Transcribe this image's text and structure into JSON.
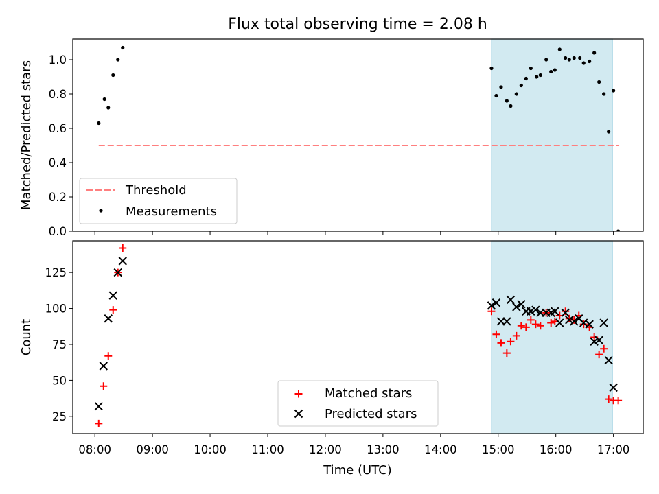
{
  "title": "Flux total observing time = 2.08 h",
  "xlabel": "Time (UTC)",
  "x_tick_labels": [
    "08:00",
    "09:00",
    "10:00",
    "11:00",
    "12:00",
    "13:00",
    "14:00",
    "15:00",
    "16:00",
    "17:00"
  ],
  "colors": {
    "threshold": "#ff7f7f",
    "measurements": "#000000",
    "matched": "#ff0000",
    "predicted": "#000000",
    "shade": "#add8e6"
  },
  "chart_data": [
    {
      "type": "scatter",
      "ylabel": "Matched/Predicted stars",
      "xlim": [
        "07:37",
        "17:31"
      ],
      "ylim": [
        0,
        1.12
      ],
      "y_ticks": [
        0.0,
        0.2,
        0.4,
        0.6,
        0.8,
        1.0
      ],
      "shaded_span": [
        "14:53",
        "16:59"
      ],
      "legend_loc": "lower left",
      "threshold": {
        "name": "Threshold",
        "y": 0.5,
        "x_range": [
          "08:04",
          "17:06"
        ]
      },
      "series": [
        {
          "name": "Measurements",
          "marker": "dot",
          "points": [
            [
              "08:04",
              0.63
            ],
            [
              "08:10",
              0.77
            ],
            [
              "08:14",
              0.72
            ],
            [
              "08:19",
              0.91
            ],
            [
              "08:24",
              1.0
            ],
            [
              "08:29",
              1.07
            ],
            [
              "14:53",
              0.95
            ],
            [
              "14:58",
              0.79
            ],
            [
              "15:03",
              0.84
            ],
            [
              "15:09",
              0.76
            ],
            [
              "15:13",
              0.73
            ],
            [
              "15:19",
              0.8
            ],
            [
              "15:24",
              0.85
            ],
            [
              "15:29",
              0.89
            ],
            [
              "15:34",
              0.95
            ],
            [
              "15:40",
              0.9
            ],
            [
              "15:44",
              0.91
            ],
            [
              "15:50",
              1.0
            ],
            [
              "15:55",
              0.93
            ],
            [
              "15:59",
              0.94
            ],
            [
              "16:04",
              1.06
            ],
            [
              "16:10",
              1.01
            ],
            [
              "16:14",
              1.0
            ],
            [
              "16:19",
              1.01
            ],
            [
              "16:25",
              1.01
            ],
            [
              "16:29",
              0.98
            ],
            [
              "16:35",
              0.99
            ],
            [
              "16:40",
              1.04
            ],
            [
              "16:45",
              0.87
            ],
            [
              "16:50",
              0.8
            ],
            [
              "16:55",
              0.58
            ],
            [
              "17:00",
              0.82
            ],
            [
              "17:05",
              0.0
            ]
          ]
        }
      ]
    },
    {
      "type": "scatter",
      "ylabel": "Count",
      "xlim": [
        "07:37",
        "17:31"
      ],
      "ylim": [
        13,
        147
      ],
      "y_ticks": [
        25,
        50,
        75,
        100,
        125
      ],
      "shaded_span": [
        "14:53",
        "16:59"
      ],
      "legend_loc": "lower center",
      "series": [
        {
          "name": "Matched stars",
          "marker": "plus",
          "points": [
            [
              "08:04",
              20
            ],
            [
              "08:09",
              46
            ],
            [
              "08:14",
              67
            ],
            [
              "08:19",
              99
            ],
            [
              "08:24",
              125
            ],
            [
              "08:29",
              142
            ],
            [
              "14:53",
              98
            ],
            [
              "14:58",
              82
            ],
            [
              "15:03",
              76
            ],
            [
              "15:09",
              69
            ],
            [
              "15:13",
              77
            ],
            [
              "15:19",
              81
            ],
            [
              "15:24",
              88
            ],
            [
              "15:29",
              87
            ],
            [
              "15:34",
              92
            ],
            [
              "15:39",
              89
            ],
            [
              "15:44",
              88
            ],
            [
              "15:50",
              97
            ],
            [
              "15:55",
              90
            ],
            [
              "15:59",
              91
            ],
            [
              "16:04",
              95
            ],
            [
              "16:10",
              98
            ],
            [
              "16:14",
              93
            ],
            [
              "16:19",
              92
            ],
            [
              "16:24",
              95
            ],
            [
              "16:29",
              89
            ],
            [
              "16:35",
              87
            ],
            [
              "16:40",
              80
            ],
            [
              "16:45",
              68
            ],
            [
              "16:50",
              72
            ],
            [
              "16:55",
              37
            ],
            [
              "17:00",
              36
            ],
            [
              "17:05",
              36
            ]
          ]
        },
        {
          "name": "Predicted stars",
          "marker": "x",
          "points": [
            [
              "08:04",
              32
            ],
            [
              "08:09",
              60
            ],
            [
              "08:14",
              93
            ],
            [
              "08:19",
              109
            ],
            [
              "08:24",
              125
            ],
            [
              "08:29",
              133
            ],
            [
              "14:53",
              102
            ],
            [
              "14:58",
              104
            ],
            [
              "15:03",
              91
            ],
            [
              "15:09",
              91
            ],
            [
              "15:13",
              106
            ],
            [
              "15:19",
              101
            ],
            [
              "15:24",
              103
            ],
            [
              "15:29",
              98
            ],
            [
              "15:34",
              98
            ],
            [
              "15:39",
              99
            ],
            [
              "15:44",
              97
            ],
            [
              "15:50",
              97
            ],
            [
              "15:55",
              97
            ],
            [
              "15:59",
              98
            ],
            [
              "16:04",
              90
            ],
            [
              "16:10",
              97
            ],
            [
              "16:14",
              92
            ],
            [
              "16:19",
              91
            ],
            [
              "16:24",
              93
            ],
            [
              "16:29",
              90
            ],
            [
              "16:35",
              89
            ],
            [
              "16:40",
              77
            ],
            [
              "16:45",
              78
            ],
            [
              "16:50",
              90
            ],
            [
              "16:55",
              64
            ],
            [
              "17:00",
              45
            ]
          ]
        }
      ]
    }
  ]
}
